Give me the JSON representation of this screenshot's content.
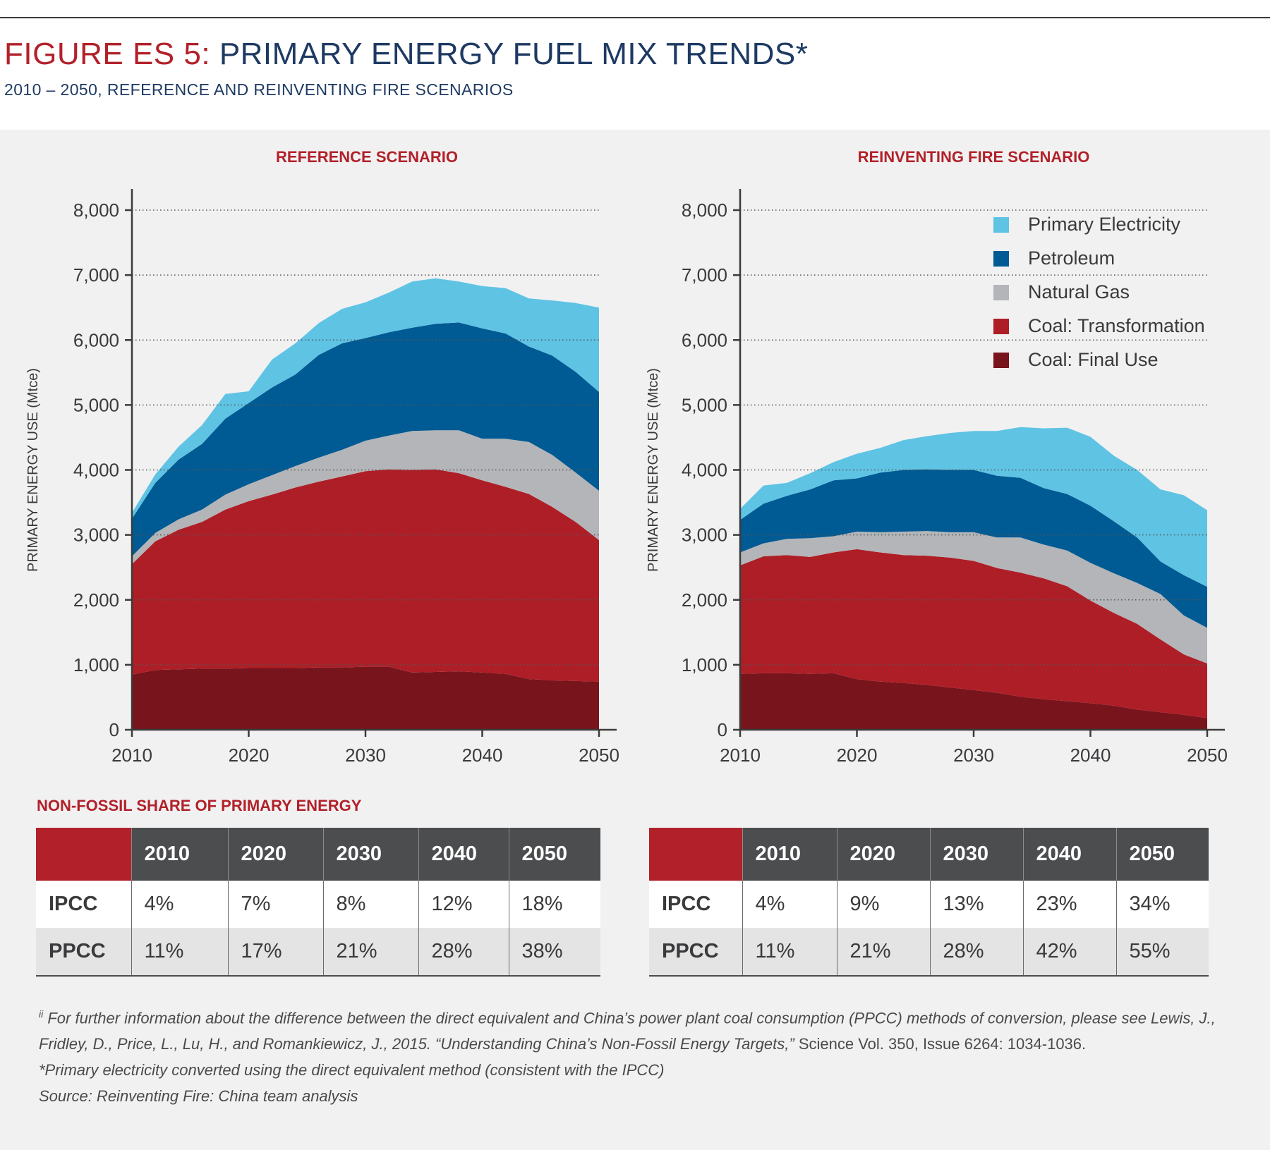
{
  "header": {
    "figure_label": "FIGURE ES 5:",
    "title": "PRIMARY ENERGY FUEL MIX TRENDS*",
    "subtitle": "2010 – 2050, REFERENCE AND REINVENTING FIRE SCENARIOS"
  },
  "colors": {
    "primary_electricity": "#5fc3e4",
    "petroleum": "#005a93",
    "natural_gas": "#b3b5b8",
    "coal_transformation": "#ae1e27",
    "coal_final_use": "#78141c"
  },
  "chart_data": [
    {
      "type": "area",
      "stacked": true,
      "title": "REFERENCE SCENARIO",
      "xlabel": "",
      "ylabel": "PRIMARY ENERGY USE (Mtce)",
      "xlim": [
        2010,
        2050
      ],
      "ylim": [
        0,
        8000
      ],
      "xticks": [
        2010,
        2020,
        2030,
        2040,
        2050
      ],
      "yticks": [
        0,
        1000,
        2000,
        3000,
        4000,
        5000,
        6000,
        7000,
        8000
      ],
      "ytick_labels": [
        "0",
        "1,000",
        "2,000",
        "3,000",
        "4,000",
        "5,000",
        "6,000",
        "7,000",
        "8,000"
      ],
      "grid": "horizontal dotted",
      "x": [
        2010,
        2012,
        2014,
        2016,
        2018,
        2020,
        2022,
        2024,
        2026,
        2028,
        2030,
        2032,
        2034,
        2036,
        2038,
        2040,
        2042,
        2044,
        2046,
        2048,
        2050
      ],
      "series": [
        {
          "name": "Coal: Final Use",
          "values": [
            850,
            920,
            930,
            940,
            940,
            950,
            950,
            950,
            960,
            960,
            970,
            970,
            880,
            890,
            900,
            880,
            860,
            780,
            760,
            750,
            740
          ]
        },
        {
          "name": "Coal: Transformation",
          "values": [
            1700,
            1980,
            2150,
            2260,
            2450,
            2570,
            2670,
            2780,
            2860,
            2940,
            3010,
            3040,
            3120,
            3120,
            3050,
            2960,
            2880,
            2850,
            2670,
            2450,
            2180
          ]
        },
        {
          "name": "Natural Gas",
          "values": [
            120,
            130,
            160,
            190,
            230,
            260,
            300,
            330,
            370,
            410,
            470,
            520,
            600,
            600,
            660,
            640,
            740,
            800,
            800,
            760,
            760
          ]
        },
        {
          "name": "Petroleum",
          "values": [
            580,
            770,
            920,
            1010,
            1170,
            1250,
            1350,
            1410,
            1580,
            1640,
            1580,
            1590,
            1590,
            1640,
            1660,
            1700,
            1620,
            1470,
            1530,
            1550,
            1520
          ]
        },
        {
          "name": "Primary Electricity",
          "values": [
            90,
            130,
            200,
            290,
            380,
            180,
            430,
            480,
            490,
            530,
            550,
            610,
            710,
            700,
            630,
            650,
            700,
            740,
            850,
            1060,
            1300
          ]
        }
      ]
    },
    {
      "type": "area",
      "stacked": true,
      "title": "REINVENTING FIRE SCENARIO",
      "xlabel": "",
      "ylabel": "PRIMARY ENERGY USE (Mtce)",
      "xlim": [
        2010,
        2050
      ],
      "ylim": [
        0,
        8000
      ],
      "xticks": [
        2010,
        2020,
        2030,
        2040,
        2050
      ],
      "yticks": [
        0,
        1000,
        2000,
        3000,
        4000,
        5000,
        6000,
        7000,
        8000
      ],
      "ytick_labels": [
        "0",
        "1,000",
        "2,000",
        "3,000",
        "4,000",
        "5,000",
        "6,000",
        "7,000",
        "8,000"
      ],
      "grid": "horizontal dotted",
      "legend": "top-right",
      "x": [
        2010,
        2012,
        2014,
        2016,
        2018,
        2020,
        2022,
        2024,
        2026,
        2028,
        2030,
        2032,
        2034,
        2036,
        2038,
        2040,
        2042,
        2044,
        2046,
        2048,
        2050
      ],
      "series": [
        {
          "name": "Coal: Final Use",
          "values": [
            860,
            870,
            870,
            860,
            870,
            780,
            740,
            720,
            690,
            650,
            610,
            570,
            510,
            470,
            440,
            410,
            370,
            310,
            270,
            230,
            180
          ]
        },
        {
          "name": "Coal: Transformation",
          "values": [
            1670,
            1800,
            1820,
            1800,
            1860,
            2000,
            1990,
            1970,
            1990,
            2000,
            1990,
            1920,
            1910,
            1860,
            1770,
            1580,
            1430,
            1320,
            1120,
            930,
            840
          ]
        },
        {
          "name": "Natural Gas",
          "values": [
            200,
            200,
            250,
            290,
            250,
            270,
            310,
            360,
            380,
            390,
            440,
            470,
            540,
            520,
            550,
            580,
            610,
            630,
            700,
            600,
            550
          ]
        },
        {
          "name": "Petroleum",
          "values": [
            500,
            610,
            660,
            750,
            860,
            820,
            920,
            950,
            950,
            960,
            960,
            950,
            920,
            870,
            870,
            880,
            800,
            700,
            500,
            620,
            630
          ]
        },
        {
          "name": "Primary Electricity",
          "values": [
            170,
            280,
            200,
            250,
            280,
            380,
            380,
            460,
            510,
            570,
            600,
            690,
            780,
            920,
            1020,
            1060,
            1010,
            1040,
            1110,
            1230,
            1180
          ]
        }
      ]
    }
  ],
  "legend": {
    "items": [
      {
        "label": "Primary Electricity",
        "color": "#5fc3e4"
      },
      {
        "label": "Petroleum",
        "color": "#005a93"
      },
      {
        "label": "Natural Gas",
        "color": "#b3b5b8"
      },
      {
        "label": "Coal: Transformation",
        "color": "#ae1e27"
      },
      {
        "label": "Coal: Final Use",
        "color": "#78141c"
      }
    ]
  },
  "non_fossil": {
    "heading": "NON-FOSSIL SHARE OF PRIMARY ENERGY",
    "tables": [
      {
        "columns": [
          "2010",
          "2020",
          "2030",
          "2040",
          "2050"
        ],
        "rows": [
          {
            "label": "IPCC",
            "values": [
              "4%",
              "7%",
              "8%",
              "12%",
              "18%"
            ]
          },
          {
            "label": "PPCC",
            "values": [
              "11%",
              "17%",
              "21%",
              "28%",
              "38%"
            ]
          }
        ]
      },
      {
        "columns": [
          "2010",
          "2020",
          "2030",
          "2040",
          "2050"
        ],
        "rows": [
          {
            "label": "IPCC",
            "values": [
              "4%",
              "9%",
              "13%",
              "23%",
              "34%"
            ]
          },
          {
            "label": "PPCC",
            "values": [
              "11%",
              "21%",
              "28%",
              "42%",
              "55%"
            ]
          }
        ]
      }
    ]
  },
  "notes": {
    "footnote_marker": "ii",
    "footnote_italic": "For further information about the difference between the direct equivalent and China’s power plant coal consumption (PPCC) methods of conversion, please see Lewis, J., Fridley, D., Price, L., Lu, H., and Romankiewicz, J., 2015. “Understanding China’s Non-Fossil Energy Targets,”",
    "footnote_plain": " Science Vol. 350, Issue 6264: 1034-1036.",
    "asterisk_note": "*Primary electricity converted using the direct equivalent method (consistent with the IPCC)",
    "source": "Source: Reinventing Fire: China team analysis"
  }
}
